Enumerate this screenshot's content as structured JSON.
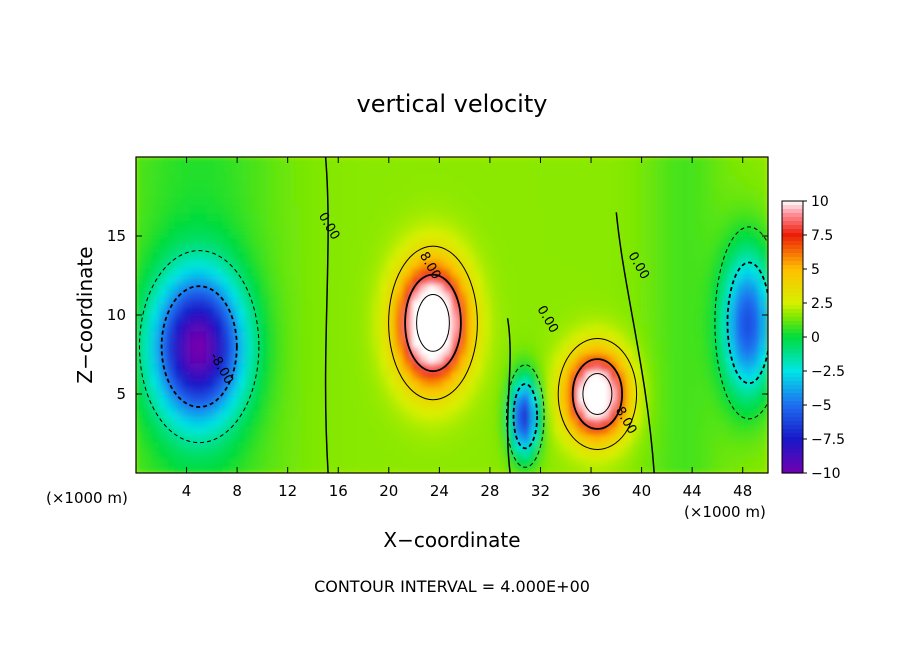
{
  "chart_data": {
    "type": "heatmap",
    "title": "vertical velocity",
    "xlabel": "X−coordinate",
    "ylabel": "Z−coordinate",
    "x_unit": "(×1000 m)",
    "x_unit_right": "(×1000 m)",
    "footer": "CONTOUR INTERVAL = 4.000E+00",
    "xlim": [
      0,
      50
    ],
    "ylim": [
      0,
      20
    ],
    "x_ticks": [
      4,
      8,
      12,
      16,
      20,
      24,
      28,
      32,
      36,
      40,
      44,
      48
    ],
    "x_tick_labels": [
      "4",
      "8",
      "12",
      "16",
      "20",
      "24",
      "28",
      "32",
      "36",
      "40",
      "44",
      "48"
    ],
    "y_ticks": [
      5,
      10,
      15
    ],
    "y_tick_labels": [
      "5",
      "10",
      "15"
    ],
    "colorbar": {
      "range": [
        -10,
        10
      ],
      "ticks": [
        10,
        7.5,
        5,
        2.5,
        0,
        -2.5,
        -5,
        -7.5,
        -10
      ],
      "labels": [
        "10",
        "7.5",
        "5",
        "2.5",
        "0",
        "−2.5",
        "−5",
        "−7.5",
        "−10"
      ]
    },
    "contour_interval": 4.0,
    "contour_labels": [
      {
        "text": "0.00",
        "x": 15.0,
        "z": 15.5
      },
      {
        "text": "0.00",
        "x": 39.5,
        "z": 13.0
      },
      {
        "text": "0.00",
        "x": 32.3,
        "z": 9.6
      },
      {
        "text": "8.00",
        "x": 23.0,
        "z": 13.0
      },
      {
        "text": "8.00",
        "x": 38.5,
        "z": 3.2
      },
      {
        "text": "-8.00",
        "x": 6.5,
        "z": 6.5
      }
    ],
    "features": [
      {
        "kind": "updraft",
        "x": 23.5,
        "z": 9.5,
        "sx": 2.6,
        "sz": 3.6,
        "peak": 12.5
      },
      {
        "kind": "updraft",
        "x": 36.5,
        "z": 5.0,
        "sx": 2.3,
        "sz": 2.6,
        "peak": 11.0
      },
      {
        "kind": "downdraft",
        "x": 5.0,
        "z": 8.0,
        "sx": 3.5,
        "sz": 4.5,
        "peak": -10.5
      },
      {
        "kind": "downdraft",
        "x": 30.8,
        "z": 3.6,
        "sx": 1.1,
        "sz": 2.4,
        "peak": -8.5
      },
      {
        "kind": "downdraft",
        "x": 48.5,
        "z": 9.5,
        "sx": 2.0,
        "sz": 4.5,
        "peak": -7.5
      }
    ]
  }
}
